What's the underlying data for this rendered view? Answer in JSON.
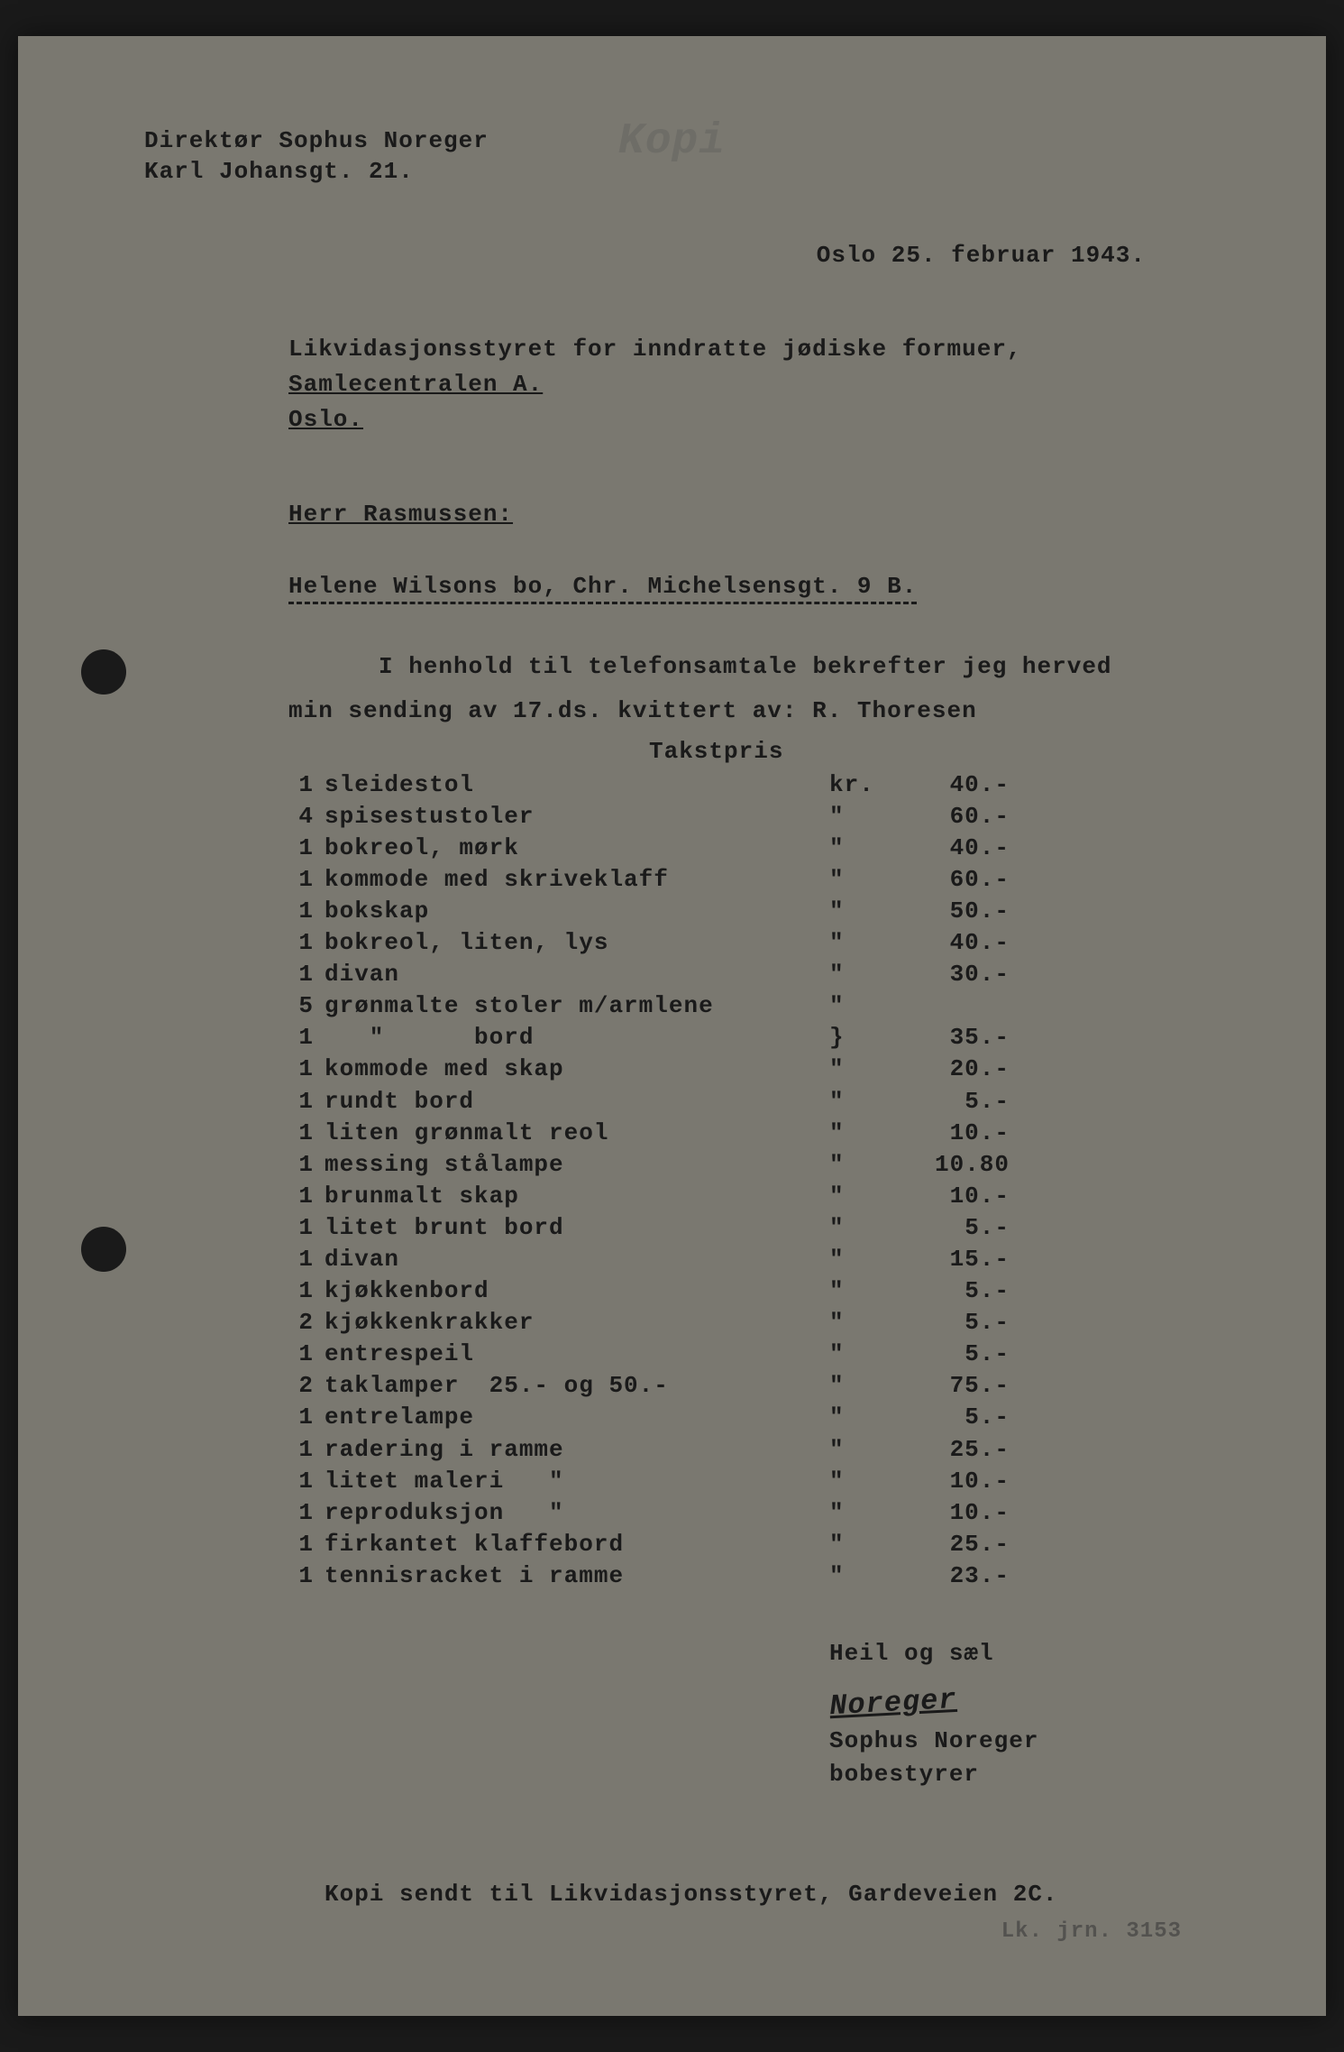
{
  "colors": {
    "page_bg": "#7a7870",
    "text": "#1a1a1a",
    "outer_bg": "#1a1a1a"
  },
  "typography": {
    "font_family": "Courier New",
    "font_size_pt": 26,
    "font_weight": "bold"
  },
  "sender": {
    "name": "Direktør Sophus Noreger",
    "address": "Karl Johansgt. 21."
  },
  "watermark": "Kopi",
  "date": "Oslo 25. februar 1943.",
  "recipient": {
    "line1": "Likvidasjonsstyret for inndratte jødiske formuer,",
    "line2": "Samlecentralen A.",
    "line3": "Oslo."
  },
  "salutation": "Herr Rasmussen:",
  "subject": "Helene Wilsons bo, Chr. Michelsensgt. 9 B.",
  "body": {
    "line1": "I henhold til telefonsamtale bekrefter jeg herved",
    "line2": "min sending av 17.ds. kvittert av: R. Thoresen"
  },
  "price_header": "Takstpris",
  "items": [
    {
      "qty": "1",
      "desc": "sleidestol",
      "unit": "kr.",
      "price": "40.-"
    },
    {
      "qty": "4",
      "desc": "spisestustoler",
      "unit": "\"",
      "price": "60.-"
    },
    {
      "qty": "1",
      "desc": "bokreol, mørk",
      "unit": "\"",
      "price": "40.-"
    },
    {
      "qty": "1",
      "desc": "kommode med skriveklaff",
      "unit": "\"",
      "price": "60.-"
    },
    {
      "qty": "1",
      "desc": "bokskap",
      "unit": "\"",
      "price": "50.-"
    },
    {
      "qty": "1",
      "desc": "bokreol, liten, lys",
      "unit": "\"",
      "price": "40.-"
    },
    {
      "qty": "1",
      "desc": "divan",
      "unit": "\"",
      "price": "30.-"
    },
    {
      "qty": "5",
      "desc": "grønmalte stoler m/armlene",
      "unit": "\"",
      "price": ""
    },
    {
      "qty": "1",
      "desc": "   \"      bord",
      "unit": "}",
      "price": "35.-"
    },
    {
      "qty": "1",
      "desc": "kommode med skap",
      "unit": "\"",
      "price": "20.-"
    },
    {
      "qty": "1",
      "desc": "rundt bord",
      "unit": "\"",
      "price": "5.-"
    },
    {
      "qty": "1",
      "desc": "liten grønmalt reol",
      "unit": "\"",
      "price": "10.-"
    },
    {
      "qty": "1",
      "desc": "messing stålampe",
      "unit": "\"",
      "price": "10.80"
    },
    {
      "qty": "1",
      "desc": "brunmalt skap",
      "unit": "\"",
      "price": "10.-"
    },
    {
      "qty": "1",
      "desc": "litet brunt bord",
      "unit": "\"",
      "price": "5.-"
    },
    {
      "qty": "1",
      "desc": "divan",
      "unit": "\"",
      "price": "15.-"
    },
    {
      "qty": "1",
      "desc": "kjøkkenbord",
      "unit": "\"",
      "price": "5.-"
    },
    {
      "qty": "2",
      "desc": "kjøkkenkrakker",
      "unit": "\"",
      "price": "5.-"
    },
    {
      "qty": "1",
      "desc": "entrespeil",
      "unit": "\"",
      "price": "5.-"
    },
    {
      "qty": "2",
      "desc": "taklamper  25.- og 50.-",
      "unit": "\"",
      "price": "75.-"
    },
    {
      "qty": "1",
      "desc": "entrelampe",
      "unit": "\"",
      "price": "5.-"
    },
    {
      "qty": "1",
      "desc": "radering i ramme",
      "unit": "\"",
      "price": "25.-"
    },
    {
      "qty": "1",
      "desc": "litet maleri   \"",
      "unit": "\"",
      "price": "10.-"
    },
    {
      "qty": "1",
      "desc": "reproduksjon   \"",
      "unit": "\"",
      "price": "10.-"
    },
    {
      "qty": "1",
      "desc": "firkantet klaffebord",
      "unit": "\"",
      "price": "25.-"
    },
    {
      "qty": "1",
      "desc": "tennisracket i ramme",
      "unit": "\"",
      "price": "23.-"
    }
  ],
  "closing": {
    "greeting": "Heil og sæl",
    "signature": "Noreger",
    "name": "Sophus Noreger",
    "title": "bobestyrer"
  },
  "footer": "Kopi sendt til Likvidasjonsstyret, Gardeveien 2C.",
  "stamp": "Lk. jrn.  3153"
}
